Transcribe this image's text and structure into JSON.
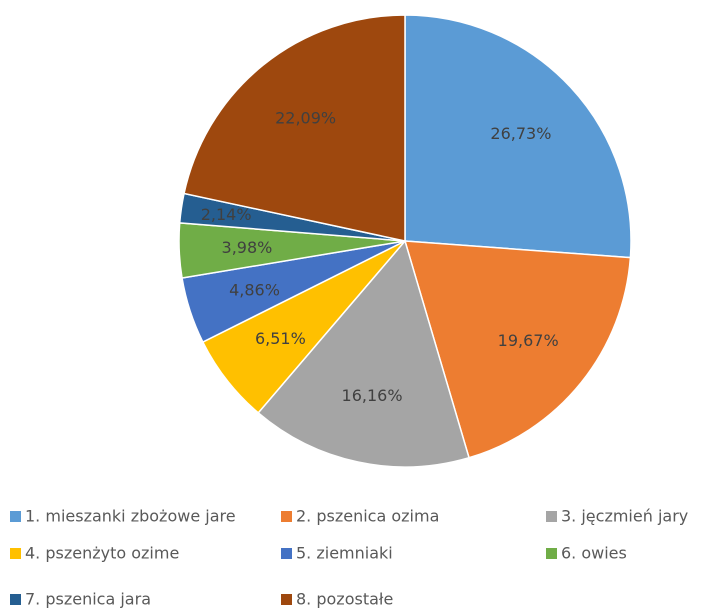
{
  "chart_data": {
    "type": "pie",
    "start_angle_deg": 90,
    "direction": "clockwise",
    "legend_position": "bottom",
    "slices": [
      {
        "legend": "1. mieszanki zbożowe jare",
        "value": 26.73,
        "label": "26,73%",
        "color": "#5B9BD5"
      },
      {
        "legend": "2. pszenica ozima",
        "value": 19.67,
        "label": "19,67%",
        "color": "#ED7D31"
      },
      {
        "legend": "3. jęczmień jary",
        "value": 16.16,
        "label": "16,16%",
        "color": "#A5A5A5"
      },
      {
        "legend": "4. pszenżyto ozime",
        "value": 6.51,
        "label": "6,51%",
        "color": "#FFC000"
      },
      {
        "legend": "5. ziemniaki",
        "value": 4.86,
        "label": "4,86%",
        "color": "#4472C4"
      },
      {
        "legend": "6. owies",
        "value": 3.98,
        "label": "3,98%",
        "color": "#70AD47"
      },
      {
        "legend": "7. pszenica jara",
        "value": 2.14,
        "label": "2,14%",
        "color": "#255E91"
      },
      {
        "legend": "8. pozostałe",
        "value": 22.09,
        "label": "22,09%",
        "color": "#9E480E"
      }
    ]
  }
}
